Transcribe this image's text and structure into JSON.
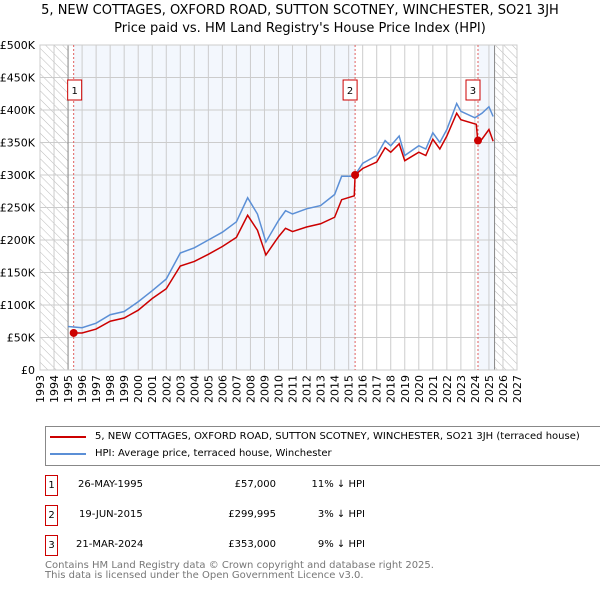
{
  "title": "5, NEW COTTAGES, OXFORD ROAD, SUTTON SCOTNEY, WINCHESTER, SO21 3JH",
  "subtitle": "Price paid vs. HM Land Registry's House Price Index (HPI)",
  "chart_data": {
    "type": "line",
    "xlim": [
      1993,
      2027
    ],
    "ylim": [
      0,
      500000
    ],
    "x_ticks": [
      "1993",
      "1994",
      "1995",
      "1996",
      "1997",
      "1998",
      "1999",
      "2000",
      "2001",
      "2002",
      "2003",
      "2004",
      "2005",
      "2006",
      "2007",
      "2008",
      "2009",
      "2010",
      "2011",
      "2012",
      "2013",
      "2014",
      "2015",
      "2016",
      "2017",
      "2018",
      "2019",
      "2020",
      "2021",
      "2022",
      "2023",
      "2024",
      "2025",
      "2026",
      "2027"
    ],
    "y_ticks": [
      "£0",
      "£50K",
      "£100K",
      "£150K",
      "£200K",
      "£250K",
      "£300K",
      "£350K",
      "£400K",
      "£450K",
      "£500K"
    ],
    "series": [
      {
        "name": "5, NEW COTTAGES, OXFORD ROAD, SUTTON SCOTNEY, WINCHESTER, SO21 3JH (terraced house)",
        "color": "#cc0000",
        "x": [
          1995.4,
          1996,
          1997,
          1998,
          1999,
          2000,
          2001,
          2002,
          2003,
          2004,
          2005,
          2006,
          2007,
          2007.8,
          2008.5,
          2009.1,
          2010,
          2010.5,
          2011,
          2012,
          2013,
          2014,
          2014.5,
          2015.4,
          2015.46,
          2016,
          2017,
          2017.6,
          2018,
          2018.6,
          2019,
          2020,
          2020.5,
          2021,
          2021.5,
          2022,
          2022.7,
          2023,
          2024.1,
          2024.2,
          2024.5,
          2025,
          2025.3
        ],
        "y": [
          57000,
          57000,
          63000,
          75000,
          80000,
          92000,
          110000,
          125000,
          160000,
          167000,
          178000,
          190000,
          204000,
          238000,
          215000,
          177000,
          205000,
          218000,
          213000,
          220000,
          225000,
          235000,
          262000,
          268000,
          300000,
          310000,
          320000,
          342000,
          335000,
          348000,
          322000,
          335000,
          330000,
          355000,
          340000,
          360000,
          395000,
          385000,
          378000,
          353000,
          355000,
          370000,
          352000
        ]
      },
      {
        "name": "HPI: Average price, terraced house, Winchester",
        "color": "#5b8fd6",
        "x": [
          1995,
          1996,
          1997,
          1998,
          1999,
          2000,
          2001,
          2002,
          2003,
          2004,
          2005,
          2006,
          2007,
          2007.8,
          2008.5,
          2009.1,
          2010,
          2010.5,
          2011,
          2012,
          2013,
          2014,
          2014.5,
          2015.4,
          2016,
          2017,
          2017.6,
          2018,
          2018.6,
          2019,
          2020,
          2020.5,
          2021,
          2021.5,
          2022,
          2022.7,
          2023,
          2024,
          2024.5,
          2025,
          2025.3
        ],
        "y": [
          67000,
          65000,
          72000,
          85000,
          90000,
          105000,
          122000,
          140000,
          180000,
          188000,
          200000,
          212000,
          228000,
          265000,
          240000,
          197000,
          230000,
          245000,
          240000,
          248000,
          253000,
          270000,
          298000,
          298000,
          318000,
          330000,
          353000,
          345000,
          360000,
          330000,
          345000,
          340000,
          365000,
          350000,
          370000,
          410000,
          398000,
          388000,
          395000,
          405000,
          390000
        ]
      }
    ],
    "sales": [
      {
        "label": "1",
        "date": "26-MAY-1995",
        "x": 1995.4,
        "price": "£57,000",
        "value": 57000,
        "hpi": "11% ↓ HPI"
      },
      {
        "label": "2",
        "date": "19-JUN-2015",
        "x": 2015.46,
        "price": "£299,995",
        "value": 299995,
        "hpi": "3% ↓ HPI"
      },
      {
        "label": "3",
        "date": "21-MAR-2024",
        "x": 2024.22,
        "price": "£353,000",
        "value": 353000,
        "hpi": "9% ↓ HPI"
      }
    ],
    "data_range": [
      1995,
      2025.4
    ],
    "legend_position": "below"
  },
  "legend": {
    "property": "5, NEW COTTAGES, OXFORD ROAD, SUTTON SCOTNEY, WINCHESTER, SO21 3JH (terraced house)",
    "hpi": "HPI: Average price, terraced house, Winchester"
  },
  "footer": {
    "line1": "Contains HM Land Registry data © Crown copyright and database right 2025.",
    "line2": "This data is licensed under the Open Government Licence v3.0."
  }
}
